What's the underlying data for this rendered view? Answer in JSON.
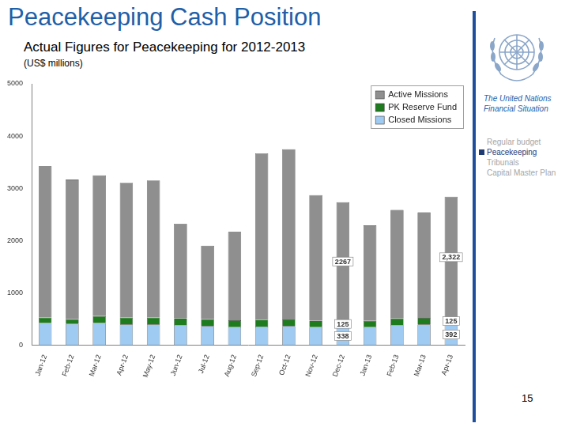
{
  "chart_data": {
    "type": "bar",
    "stacked": true,
    "title": "Peacekeeping Cash Position",
    "subtitle": "Actual Figures for Peacekeeping for 2012-2013",
    "ylabel": "(US$ millions)",
    "categories": [
      "Jan-12",
      "Feb-12",
      "Mar-12",
      "Apr-12",
      "May-12",
      "Jun-12",
      "Jul-12",
      "Aug-12",
      "Sep-12",
      "Oct-12",
      "Nov-12",
      "Dec-12",
      "Jan-13",
      "Feb-13",
      "Mar-13",
      "Apr-13"
    ],
    "series": [
      {
        "name": "Active Missions",
        "color": "#8f8f8f",
        "values": [
          2900,
          2676,
          2695,
          2583,
          2630,
          1810,
          1407,
          1693,
          3188,
          3261,
          2403,
          2267,
          1828,
          2081,
          2024,
          2322
        ],
        "value_labels": [
          null,
          null,
          null,
          null,
          null,
          null,
          null,
          null,
          null,
          null,
          null,
          "2267",
          null,
          null,
          null,
          "2,322"
        ]
      },
      {
        "name": "PK Reserve Fund",
        "color": "#1e7b1e",
        "values": [
          100,
          90,
          130,
          130,
          130,
          130,
          130,
          130,
          130,
          125,
          125,
          125,
          120,
          125,
          125,
          125
        ],
        "value_labels": [
          null,
          null,
          null,
          null,
          null,
          null,
          null,
          null,
          null,
          null,
          null,
          "125",
          null,
          null,
          null,
          "125"
        ]
      },
      {
        "name": "Closed Missions",
        "color": "#9fcbf2",
        "values": [
          420,
          400,
          420,
          390,
          390,
          380,
          360,
          340,
          350,
          360,
          340,
          338,
          340,
          380,
          390,
          392
        ],
        "value_labels": [
          null,
          null,
          null,
          null,
          null,
          null,
          null,
          null,
          null,
          null,
          null,
          "338",
          null,
          null,
          null,
          "392"
        ]
      }
    ],
    "ylim": [
      0,
      5000
    ],
    "yticks": [
      0,
      1000,
      2000,
      3000,
      4000,
      5000
    ],
    "grid": false,
    "legend": "upper right"
  },
  "sidebar": {
    "title": "The United Nations Financial Situation",
    "items": [
      "Regular budget",
      "Peacekeeping",
      "Tribunals",
      "Capital Master Plan"
    ],
    "highlighted": "Peacekeeping"
  },
  "page_number": "15"
}
